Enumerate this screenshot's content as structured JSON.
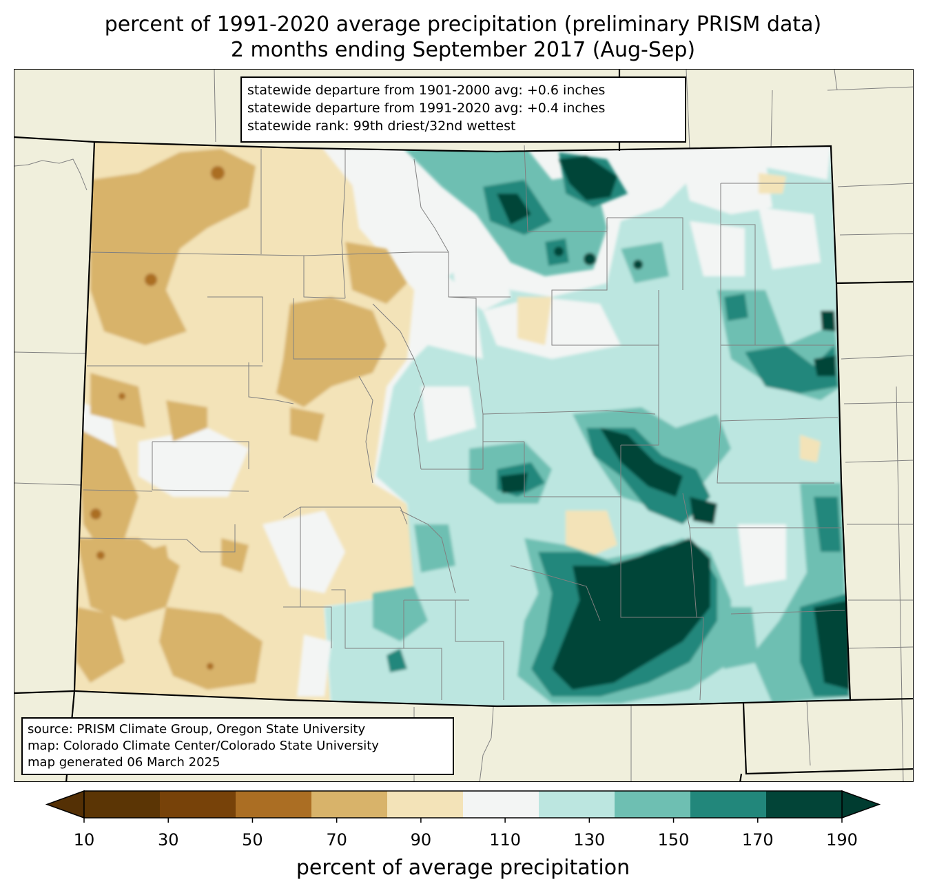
{
  "title": {
    "line1": "percent of 1991-2020 average precipitation (preliminary PRISM data)",
    "line2": "2 months ending September 2017 (Aug-Sep)"
  },
  "stats": {
    "line1": "statewide departure from 1901-2000 avg: +0.6 inches",
    "line2": "statewide departure from 1991-2020 avg: +0.4 inches",
    "line3": "statewide rank: 99th driest/32nd wettest"
  },
  "source": {
    "line1": "source: PRISM Climate Group, Oregon State University",
    "line2": "map: Colorado Climate Center/Colorado State University",
    "line3": "map generated 06 March 2025"
  },
  "colorbar": {
    "label": "percent of average precipitation",
    "ticks": [
      "10",
      "30",
      "50",
      "70",
      "90",
      "110",
      "130",
      "150",
      "170",
      "190"
    ],
    "colors": [
      "#5b3505",
      "#774209",
      "#ab6e23",
      "#d8b36a",
      "#f3e3b8",
      "#f3f5f4",
      "#bce6e0",
      "#6ebfb2",
      "#22877b",
      "#024437"
    ],
    "under_color": "#543005",
    "over_color": "#003c30"
  },
  "map_colors": {
    "background": "#f0efdc",
    "county_lines": "#808080",
    "state_lines": "#000000"
  }
}
